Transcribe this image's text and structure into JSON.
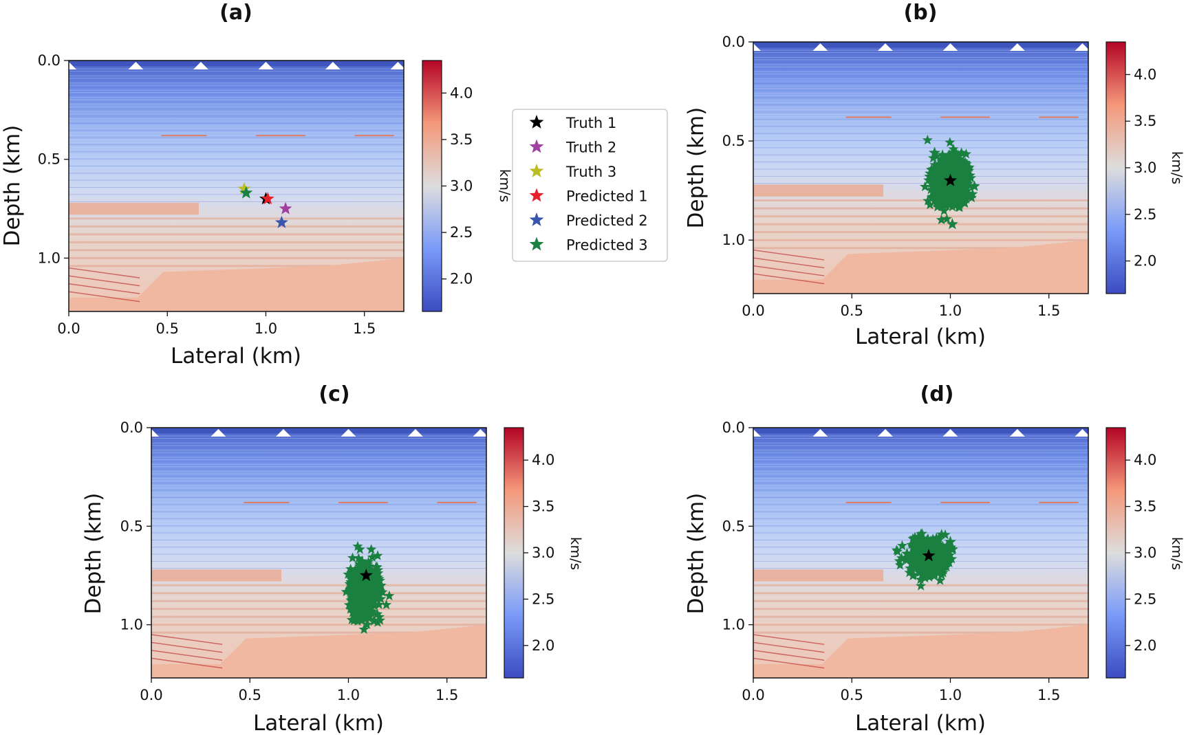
{
  "chart_data": [
    {
      "type": "heatmap",
      "title": "(a)",
      "xlabel": "Lateral (km)",
      "ylabel": "Depth (km)",
      "xlim": [
        0.0,
        1.7
      ],
      "ylim": [
        1.27,
        0.0
      ],
      "xticks": [
        "0.0",
        "0.5",
        "1.0",
        "1.5"
      ],
      "yticks": [
        "0.0",
        "0.5",
        "1.0"
      ],
      "colorbar": {
        "label": "km/s",
        "range": [
          1.65,
          4.35
        ],
        "ticks": [
          "2.0",
          "2.5",
          "3.0",
          "3.5",
          "4.0"
        ]
      },
      "receivers_x_km": [
        0.0,
        0.34,
        0.67,
        1.0,
        1.34,
        1.67
      ],
      "legend": [
        "Truth 1",
        "Truth 2",
        "Truth 3",
        "Predicted 1",
        "Predicted 2",
        "Predicted 3"
      ],
      "legend_position": "outside-right",
      "stars": [
        {
          "name": "Truth 1",
          "color": "#000000",
          "x": 1.0,
          "y": 0.7
        },
        {
          "name": "Truth 2",
          "color": "#a040a0",
          "x": 1.1,
          "y": 0.75
        },
        {
          "name": "Truth 3",
          "color": "#bcbd22",
          "x": 0.89,
          "y": 0.65
        },
        {
          "name": "Predicted 1",
          "color": "#e8202a",
          "x": 1.01,
          "y": 0.7
        },
        {
          "name": "Predicted 2",
          "color": "#3a55b0",
          "x": 1.08,
          "y": 0.82
        },
        {
          "name": "Predicted 3",
          "color": "#1a8040",
          "x": 0.9,
          "y": 0.67
        }
      ]
    },
    {
      "type": "heatmap",
      "title": "(b)",
      "xlabel": "Lateral (km)",
      "ylabel": "Depth (km)",
      "xlim": [
        0.0,
        1.7
      ],
      "ylim": [
        1.27,
        0.0
      ],
      "xticks": [
        "0.0",
        "0.5",
        "1.0",
        "1.5"
      ],
      "yticks": [
        "0.0",
        "0.5",
        "1.0"
      ],
      "colorbar": {
        "label": "km/s",
        "range": [
          1.65,
          4.35
        ],
        "ticks": [
          "2.0",
          "2.5",
          "3.0",
          "3.5",
          "4.0"
        ]
      },
      "receivers_x_km": [
        0.0,
        0.34,
        0.67,
        1.0,
        1.34,
        1.67
      ],
      "truth": {
        "x": 1.0,
        "y": 0.7,
        "color": "#000000"
      },
      "predicted_cloud": {
        "center_x": 1.0,
        "center_y": 0.7,
        "spread_x": 0.09,
        "spread_y": 0.12,
        "color": "#1a8040",
        "outliers": [
          [
            0.92,
            0.56
          ],
          [
            1.01,
            0.92
          ]
        ]
      }
    },
    {
      "type": "heatmap",
      "title": "(c)",
      "xlabel": "Lateral (km)",
      "ylabel": "Depth (km)",
      "xlim": [
        0.0,
        1.7
      ],
      "ylim": [
        1.27,
        0.0
      ],
      "xticks": [
        "0.0",
        "0.5",
        "1.0",
        "1.5"
      ],
      "yticks": [
        "0.0",
        "0.5",
        "1.0"
      ],
      "colorbar": {
        "label": "km/s",
        "range": [
          1.65,
          4.35
        ],
        "ticks": [
          "2.0",
          "2.5",
          "3.0",
          "3.5",
          "4.0"
        ]
      },
      "receivers_x_km": [
        0.0,
        0.34,
        0.67,
        1.0,
        1.34,
        1.67
      ],
      "truth": {
        "x": 1.09,
        "y": 0.75,
        "color": "#000000"
      },
      "predicted_cloud": {
        "center_x": 1.08,
        "center_y": 0.83,
        "spread_x": 0.07,
        "spread_y": 0.13,
        "color": "#1a8040",
        "outliers": [
          [
            1.13,
            0.98
          ]
        ]
      }
    },
    {
      "type": "heatmap",
      "title": "(d)",
      "xlabel": "Lateral (km)",
      "ylabel": "Depth (km)",
      "xlim": [
        0.0,
        1.7
      ],
      "ylim": [
        1.27,
        0.0
      ],
      "xticks": [
        "0.0",
        "0.5",
        "1.0",
        "1.5"
      ],
      "yticks": [
        "0.0",
        "0.5",
        "1.0"
      ],
      "colorbar": {
        "label": "km/s",
        "range": [
          1.65,
          4.35
        ],
        "ticks": [
          "2.0",
          "2.5",
          "3.0",
          "3.5",
          "4.0"
        ]
      },
      "receivers_x_km": [
        0.0,
        0.34,
        0.67,
        1.0,
        1.34,
        1.67
      ],
      "truth": {
        "x": 0.89,
        "y": 0.65,
        "color": "#000000"
      },
      "predicted_cloud": {
        "center_x": 0.89,
        "center_y": 0.66,
        "spread_x": 0.09,
        "spread_y": 0.08,
        "color": "#1a8040",
        "outliers": [
          [
            0.82,
            0.56
          ],
          [
            1.0,
            0.58
          ],
          [
            0.78,
            0.64
          ]
        ]
      }
    }
  ]
}
